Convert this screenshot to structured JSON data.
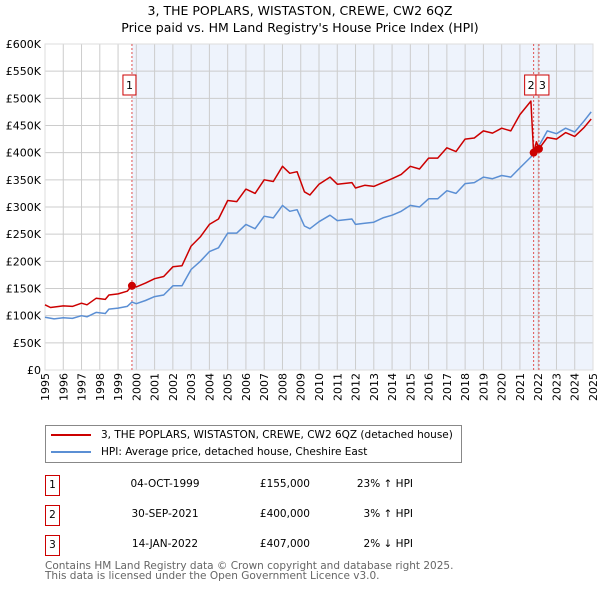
{
  "title_line1": "3, THE POPLARS, WISTASTON, CREWE, CW2 6QZ",
  "title_line2": "Price paid vs. HM Land Registry's House Price Index (HPI)",
  "colors": {
    "property": "#cc0000",
    "hpi": "#5b8fd4",
    "shade": "#eef3fc",
    "grid": "#cccccc"
  },
  "chart_data": {
    "type": "line",
    "title": "3, THE POPLARS, WISTASTON, CREWE, CW2 6QZ — Price paid vs. HM Land Registry's House Price Index (HPI)",
    "xlim": [
      1995,
      2025
    ],
    "ylim": [
      0,
      600000
    ],
    "y_ticks": [
      0,
      50000,
      100000,
      150000,
      200000,
      250000,
      300000,
      350000,
      400000,
      450000,
      500000,
      550000,
      600000
    ],
    "y_tick_labels": [
      "£0",
      "£50K",
      "£100K",
      "£150K",
      "£200K",
      "£250K",
      "£300K",
      "£350K",
      "£400K",
      "£450K",
      "£500K",
      "£550K",
      "£600K"
    ],
    "x_ticks": [
      1995,
      1996,
      1997,
      1998,
      1999,
      2000,
      2001,
      2002,
      2003,
      2004,
      2005,
      2006,
      2007,
      2008,
      2009,
      2010,
      2011,
      2012,
      2013,
      2014,
      2015,
      2016,
      2017,
      2018,
      2019,
      2020,
      2021,
      2022,
      2023,
      2024,
      2025
    ],
    "x_tick_labels": [
      "1995",
      "1996",
      "1997",
      "1998",
      "1999",
      "2000",
      "2001",
      "2002",
      "2003",
      "2004",
      "2005",
      "2006",
      "2007",
      "2008",
      "2009",
      "2010",
      "2011",
      "2012",
      "2013",
      "2014",
      "2015",
      "2016",
      "2017",
      "2018",
      "2019",
      "2020",
      "2021",
      "2022",
      "2023",
      "2024",
      "2025"
    ],
    "grid": true,
    "legend_position": "below",
    "series": [
      {
        "name": "3, THE POPLARS, WISTASTON, CREWE, CW2 6QZ (detached house)",
        "x": [
          1995,
          1995.3,
          1996,
          1996.5,
          1997,
          1997.3,
          1997.8,
          1998.3,
          1998.5,
          1999,
          1999.5,
          1999.76,
          2000,
          2000.5,
          2001,
          2001.5,
          2002,
          2002.5,
          2003,
          2003.5,
          2004,
          2004.5,
          2005,
          2005.5,
          2006,
          2006.5,
          2007,
          2007.5,
          2008,
          2008.4,
          2008.8,
          2009.2,
          2009.5,
          2010,
          2010.6,
          2011,
          2011.8,
          2012,
          2012.5,
          2013,
          2013.5,
          2014,
          2014.5,
          2015,
          2015.5,
          2016,
          2016.5,
          2017,
          2017.5,
          2018,
          2018.5,
          2019,
          2019.5,
          2020,
          2020.5,
          2021,
          2021.6,
          2021.75,
          2021.9,
          2022.04,
          2022.5,
          2023,
          2023.5,
          2024,
          2024.5,
          2024.9
        ],
        "y": [
          120000,
          115000,
          118000,
          117000,
          123000,
          120000,
          132000,
          130000,
          138000,
          140000,
          145000,
          155000,
          153000,
          160000,
          168000,
          172000,
          190000,
          192000,
          228000,
          245000,
          268000,
          278000,
          312000,
          310000,
          333000,
          325000,
          350000,
          347000,
          375000,
          362000,
          365000,
          328000,
          322000,
          342000,
          355000,
          342000,
          345000,
          335000,
          340000,
          338000,
          345000,
          352000,
          360000,
          375000,
          370000,
          390000,
          390000,
          409000,
          402000,
          425000,
          427000,
          440000,
          436000,
          445000,
          440000,
          470000,
          495000,
          400000,
          420000,
          407000,
          428000,
          425000,
          437000,
          430000,
          446000,
          462000
        ]
      },
      {
        "name": "HPI: Average price, detached house, Cheshire East",
        "x": [
          1995,
          1995.5,
          1996,
          1996.5,
          1997,
          1997.3,
          1997.8,
          1998.3,
          1998.5,
          1999,
          1999.5,
          1999.76,
          2000,
          2000.5,
          2001,
          2001.5,
          2002,
          2002.5,
          2003,
          2003.5,
          2004,
          2004.5,
          2005,
          2005.5,
          2006,
          2006.5,
          2007,
          2007.5,
          2008,
          2008.4,
          2008.8,
          2009.2,
          2009.5,
          2010,
          2010.6,
          2011,
          2011.8,
          2012,
          2012.5,
          2013,
          2013.5,
          2014,
          2014.5,
          2015,
          2015.5,
          2016,
          2016.5,
          2017,
          2017.5,
          2018,
          2018.5,
          2019,
          2019.5,
          2020,
          2020.5,
          2021,
          2021.6,
          2021.75,
          2022,
          2022.5,
          2023,
          2023.5,
          2024,
          2024.5,
          2024.9
        ],
        "y": [
          97000,
          94000,
          96000,
          95000,
          100000,
          98000,
          106000,
          104000,
          112000,
          114000,
          117000,
          125000,
          122000,
          128000,
          135000,
          138000,
          155000,
          155000,
          185000,
          200000,
          218000,
          225000,
          252000,
          252000,
          268000,
          260000,
          283000,
          280000,
          303000,
          292000,
          295000,
          265000,
          260000,
          273000,
          285000,
          275000,
          278000,
          268000,
          270000,
          272000,
          280000,
          285000,
          292000,
          303000,
          300000,
          315000,
          315000,
          330000,
          325000,
          343000,
          345000,
          355000,
          352000,
          358000,
          355000,
          372000,
          392000,
          398000,
          410000,
          440000,
          435000,
          445000,
          438000,
          458000,
          475000
        ]
      }
    ],
    "markers": [
      {
        "label": "1",
        "x": 1999.76,
        "y": 155000
      },
      {
        "label": "2",
        "x": 2021.75,
        "y": 400000
      },
      {
        "label": "3",
        "x": 2022.04,
        "y": 407000
      }
    ]
  },
  "legend": {
    "property_label": "3, THE POPLARS, WISTASTON, CREWE, CW2 6QZ (detached house)",
    "hpi_label": "HPI: Average price, detached house, Cheshire East"
  },
  "transactions": [
    {
      "num": "1",
      "date": "04-OCT-1999",
      "price": "£155,000",
      "hpi": "23% ↑ HPI"
    },
    {
      "num": "2",
      "date": "30-SEP-2021",
      "price": "£400,000",
      "hpi": "3% ↑ HPI"
    },
    {
      "num": "3",
      "date": "14-JAN-2022",
      "price": "£407,000",
      "hpi": "2% ↓ HPI"
    }
  ],
  "footer": {
    "line1": "Contains HM Land Registry data © Crown copyright and database right 2025.",
    "line2": "This data is licensed under the Open Government Licence v3.0."
  }
}
